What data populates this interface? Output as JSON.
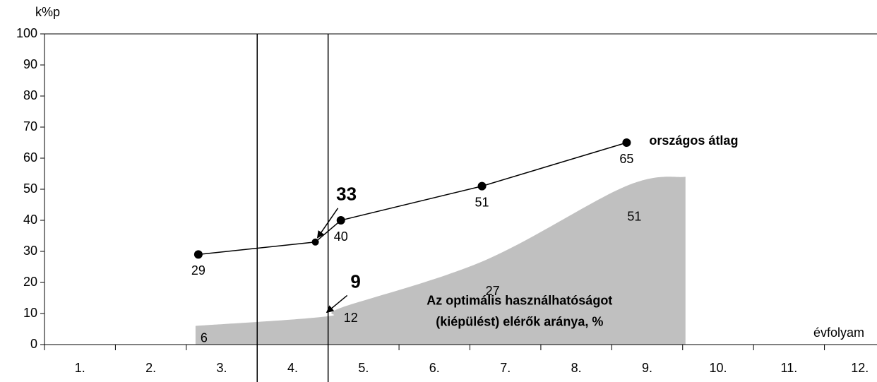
{
  "chart_data": {
    "type": "line",
    "y_label": "k%p",
    "x_label": "évfolyam",
    "xlim": [
      0.5,
      12.5
    ],
    "xticks": [
      {
        "value": 1,
        "label": "1."
      },
      {
        "value": 2,
        "label": "2."
      },
      {
        "value": 3,
        "label": "3."
      },
      {
        "value": 4,
        "label": "4."
      },
      {
        "value": 5,
        "label": "5."
      },
      {
        "value": 6,
        "label": "6."
      },
      {
        "value": 7,
        "label": "7."
      },
      {
        "value": 8,
        "label": "8."
      },
      {
        "value": 9,
        "label": "9."
      },
      {
        "value": 10,
        "label": "10."
      },
      {
        "value": 11,
        "label": "11."
      },
      {
        "value": 12,
        "label": "12."
      }
    ],
    "ylim": [
      0,
      100
    ],
    "yticks": [
      0,
      10,
      20,
      30,
      40,
      50,
      60,
      70,
      80,
      90,
      100
    ],
    "vlines": [
      3.5,
      4.5
    ],
    "series": [
      {
        "name": [
          "Az optimális használhatóságot",
          "(kiépülést) elérők aránya, %"
        ],
        "kind": "area",
        "color": "#c0c0c0",
        "x": [
          2.63,
          4.45,
          4.7,
          6.7,
          8.7,
          9.54
        ],
        "values": [
          6,
          9,
          12,
          27,
          51,
          54
        ],
        "value_labels": [
          "6",
          null,
          "12",
          "27",
          "51",
          null
        ]
      },
      {
        "name": "országos átlag",
        "kind": "line",
        "color": "#000000",
        "x": [
          2.67,
          4.32,
          4.68,
          6.67,
          8.71
        ],
        "values": [
          29,
          33,
          40,
          51,
          65
        ],
        "value_labels": [
          "29",
          null,
          "40",
          "51",
          "65"
        ]
      }
    ],
    "annotations": [
      {
        "label": "33",
        "x": 4.32,
        "y": 33
      },
      {
        "label": "9",
        "x": 4.45,
        "y": 9
      }
    ]
  }
}
